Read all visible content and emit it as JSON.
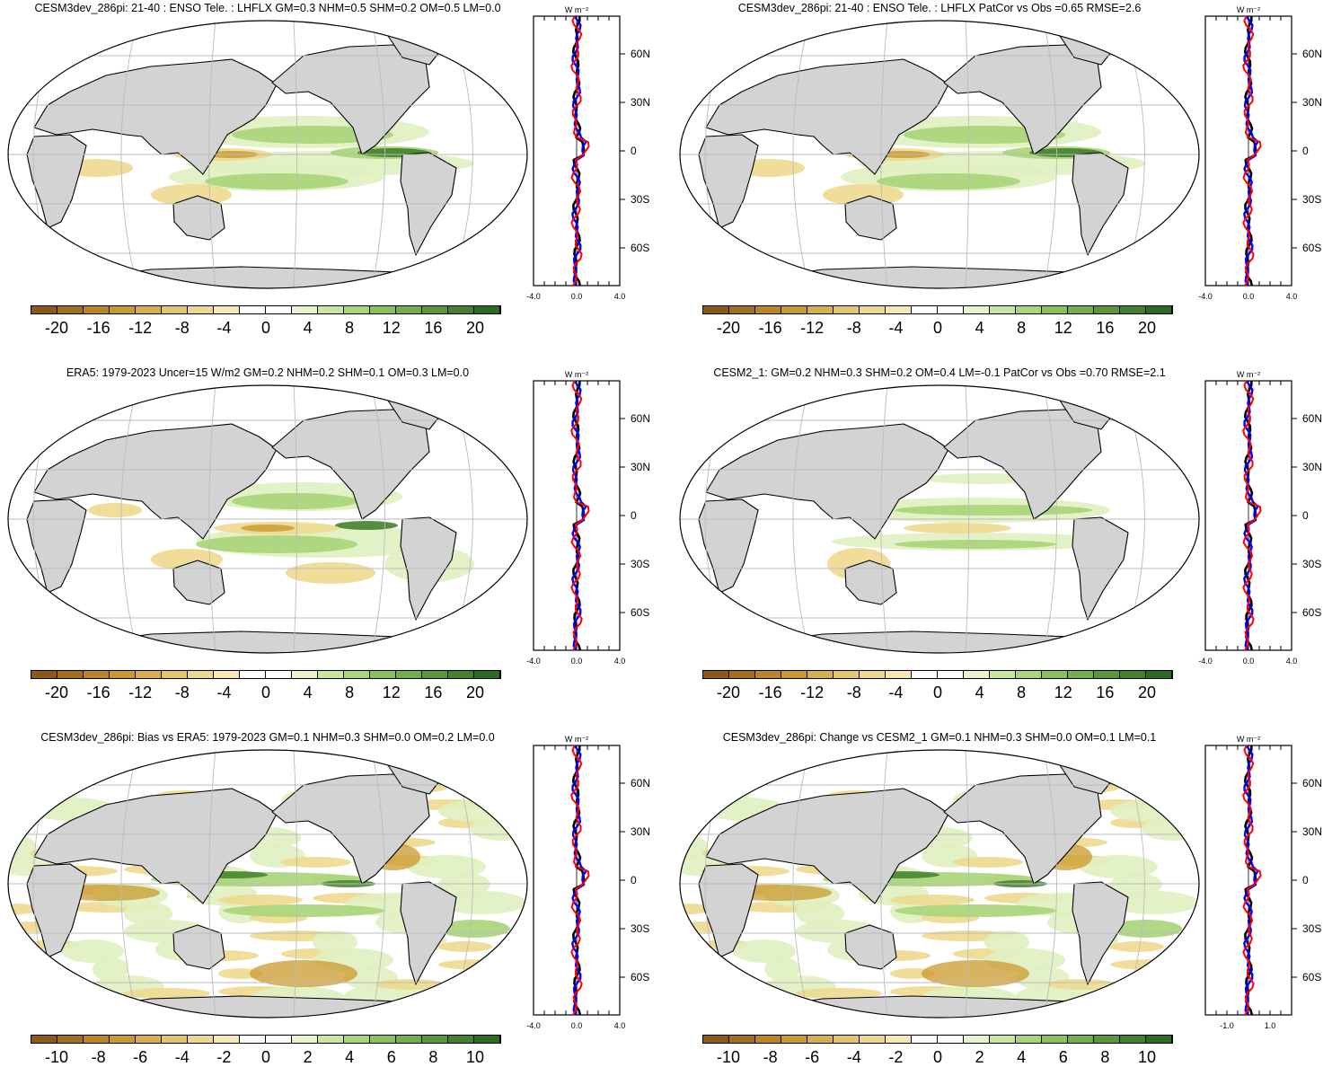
{
  "units_label": "W m⁻²",
  "colors": {
    "land": "#d3d3d3",
    "grid": "#bbbbbb",
    "obs_line": "#ff0000",
    "model_line": "#0000ff",
    "other_line": "#000000"
  },
  "colorbar_colors": [
    "#8c5a16",
    "#a2701d",
    "#b98623",
    "#c99a2e",
    "#d8b04b",
    "#e3c56c",
    "#edd98e",
    "#f5e8b5",
    "#ffffff",
    "#ffffff",
    "#e8f4cc",
    "#c9e59e",
    "#a9d477",
    "#8cc15a",
    "#74ad4a",
    "#5b983b",
    "#43812e",
    "#2d6b22"
  ],
  "colorbar_labels_a": [
    "-20",
    "-16",
    "-12",
    "-8",
    "-4",
    "0",
    "4",
    "8",
    "12",
    "16",
    "20"
  ],
  "colorbar_labels_b": [
    "-10",
    "-8",
    "-6",
    "-4",
    "-2",
    "0",
    "2",
    "4",
    "6",
    "8",
    "10"
  ],
  "lat_labels": [
    "60N",
    "30N",
    "0",
    "30S",
    "60S"
  ],
  "panels": [
    {
      "title": "CESM3dev_286pi: 21-40 : ENSO Tele. : LHFLX GM=0.3 NHM=0.5 SHM=0.2 OM=0.5 LM=0.0",
      "xticks": [
        "-4.0",
        "0.0",
        "4.0"
      ]
    },
    {
      "title": "CESM3dev_286pi: 21-40 : ENSO Tele. : LHFLX PatCor vs Obs =0.65 RMSE=2.6",
      "xticks": [
        "-4.0",
        "0.0",
        "4.0"
      ]
    },
    {
      "title": "ERA5: 1979-2023 Uncer=15 W/m2 GM=0.2 NHM=0.2 SHM=0.1 OM=0.3 LM=0.0",
      "xticks": [
        "-4.0",
        "0.0",
        "4.0"
      ]
    },
    {
      "title": "CESM2_1: GM=0.2 NHM=0.3 SHM=0.2 OM=0.4 LM=-0.1 PatCor vs Obs =0.70 RMSE=2.1",
      "xticks": [
        "-4.0",
        "0.0",
        "4.0"
      ]
    },
    {
      "title": "CESM3dev_286pi: Bias vs ERA5: 1979-2023 GM=0.1 NHM=0.3 SHM=0.0 OM=0.2 LM=0.0",
      "xticks": [
        "-4.0",
        "0.0",
        "4.0"
      ]
    },
    {
      "title": "CESM3dev_286pi: Change vs CESM2_1 GM=0.1 NHM=0.3 SHM=0.0 OM=0.1 LM=0.1",
      "xticks": [
        "-1.0",
        "1.0"
      ]
    }
  ]
}
